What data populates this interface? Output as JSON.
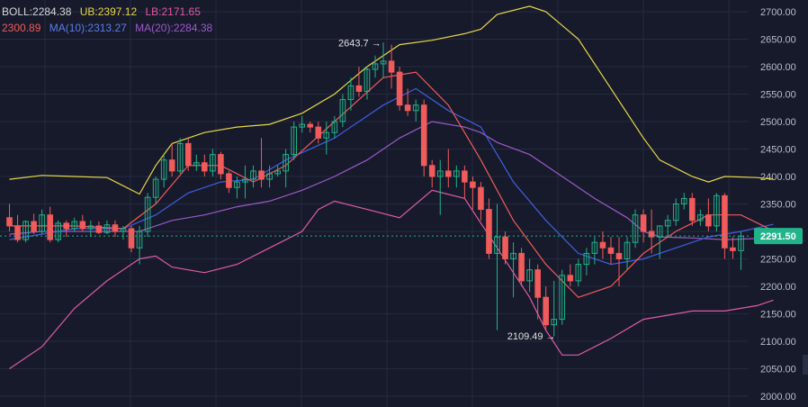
{
  "legend": {
    "boll": {
      "label": "BOLL:2284.38",
      "color": "#d9d9d9"
    },
    "ub": {
      "label": "UB:2397.12",
      "color": "#e6d84a"
    },
    "lb": {
      "label": "LB:2171.65",
      "color": "#e05aa6"
    },
    "ma5": {
      "label": "2300.89",
      "color": "#f05b5b"
    },
    "ma10": {
      "label": "MA(10):2313.27",
      "color": "#3f5fe0"
    },
    "ma20": {
      "label": "MA(20):2284.38",
      "color": "#9b59c9"
    }
  },
  "current_price": {
    "label": "2291.50",
    "color": "#22b38a"
  },
  "chart_data": {
    "type": "candlestick",
    "y_axis": {
      "ticks": [
        "2700.00",
        "2650.00",
        "2600.00",
        "2550.00",
        "2500.00",
        "2450.00",
        "2400.00",
        "2350.00",
        "2300.00",
        "2250.00",
        "2200.00",
        "2150.00",
        "2100.00",
        "2050.00",
        "2000.00"
      ],
      "ylim": [
        1990,
        2730
      ]
    },
    "annotations": {
      "high": "2643.7",
      "low": "2109.49"
    },
    "colors": {
      "up": "#22b38a",
      "down": "#f05b5b",
      "grid": "#252a3f",
      "axis_text": "#b8bccc"
    },
    "candles": [
      [
        2325,
        2350,
        2300,
        2310
      ],
      [
        2310,
        2330,
        2280,
        2285
      ],
      [
        2285,
        2320,
        2280,
        2318
      ],
      [
        2318,
        2332,
        2295,
        2300
      ],
      [
        2300,
        2340,
        2295,
        2330
      ],
      [
        2330,
        2345,
        2280,
        2285
      ],
      [
        2285,
        2320,
        2280,
        2315
      ],
      [
        2315,
        2320,
        2290,
        2305
      ],
      [
        2305,
        2325,
        2300,
        2318
      ],
      [
        2318,
        2330,
        2300,
        2305
      ],
      [
        2305,
        2320,
        2290,
        2310
      ],
      [
        2310,
        2318,
        2295,
        2298
      ],
      [
        2298,
        2320,
        2295,
        2312
      ],
      [
        2312,
        2320,
        2290,
        2300
      ],
      [
        2300,
        2310,
        2285,
        2305
      ],
      [
        2305,
        2310,
        2262,
        2270
      ],
      [
        2270,
        2310,
        2240,
        2300
      ],
      [
        2300,
        2370,
        2290,
        2362
      ],
      [
        2362,
        2400,
        2350,
        2395
      ],
      [
        2395,
        2440,
        2380,
        2430
      ],
      [
        2430,
        2460,
        2400,
        2410
      ],
      [
        2410,
        2470,
        2405,
        2460
      ],
      [
        2460,
        2470,
        2410,
        2420
      ],
      [
        2420,
        2440,
        2410,
        2425
      ],
      [
        2425,
        2440,
        2400,
        2410
      ],
      [
        2410,
        2450,
        2400,
        2440
      ],
      [
        2440,
        2445,
        2395,
        2405
      ],
      [
        2405,
        2410,
        2370,
        2380
      ],
      [
        2380,
        2400,
        2360,
        2390
      ],
      [
        2390,
        2420,
        2360,
        2395
      ],
      [
        2395,
        2420,
        2380,
        2410
      ],
      [
        2410,
        2470,
        2380,
        2395
      ],
      [
        2395,
        2420,
        2380,
        2405
      ],
      [
        2405,
        2420,
        2400,
        2410
      ],
      [
        2410,
        2450,
        2380,
        2440
      ],
      [
        2440,
        2500,
        2430,
        2490
      ],
      [
        2490,
        2510,
        2480,
        2495
      ],
      [
        2495,
        2500,
        2480,
        2490
      ],
      [
        2490,
        2500,
        2460,
        2470
      ],
      [
        2470,
        2500,
        2440,
        2480
      ],
      [
        2480,
        2510,
        2470,
        2500
      ],
      [
        2500,
        2550,
        2490,
        2540
      ],
      [
        2540,
        2580,
        2520,
        2565
      ],
      [
        2565,
        2600,
        2545,
        2555
      ],
      [
        2555,
        2600,
        2540,
        2595
      ],
      [
        2595,
        2620,
        2580,
        2605
      ],
      [
        2605,
        2644,
        2580,
        2610
      ],
      [
        2610,
        2640,
        2560,
        2590
      ],
      [
        2590,
        2600,
        2520,
        2530
      ],
      [
        2530,
        2560,
        2510,
        2520
      ],
      [
        2520,
        2540,
        2500,
        2530
      ],
      [
        2530,
        2540,
        2400,
        2420
      ],
      [
        2420,
        2430,
        2380,
        2400
      ],
      [
        2400,
        2430,
        2330,
        2410
      ],
      [
        2410,
        2450,
        2380,
        2400
      ],
      [
        2400,
        2420,
        2380,
        2410
      ],
      [
        2410,
        2420,
        2360,
        2390
      ],
      [
        2390,
        2400,
        2340,
        2380
      ],
      [
        2380,
        2390,
        2320,
        2340
      ],
      [
        2340,
        2360,
        2250,
        2260
      ],
      [
        2260,
        2350,
        2120,
        2290
      ],
      [
        2290,
        2300,
        2240,
        2250
      ],
      [
        2250,
        2280,
        2180,
        2260
      ],
      [
        2260,
        2270,
        2200,
        2210
      ],
      [
        2210,
        2250,
        2190,
        2230
      ],
      [
        2230,
        2240,
        2140,
        2180
      ],
      [
        2180,
        2200,
        2120,
        2130
      ],
      [
        2130,
        2210,
        2109,
        2140
      ],
      [
        2140,
        2230,
        2130,
        2220
      ],
      [
        2220,
        2240,
        2200,
        2210
      ],
      [
        2210,
        2250,
        2200,
        2240
      ],
      [
        2240,
        2270,
        2220,
        2260
      ],
      [
        2260,
        2290,
        2240,
        2280
      ],
      [
        2280,
        2300,
        2250,
        2270
      ],
      [
        2270,
        2290,
        2240,
        2260
      ],
      [
        2260,
        2290,
        2200,
        2250
      ],
      [
        2250,
        2290,
        2230,
        2280
      ],
      [
        2280,
        2340,
        2270,
        2330
      ],
      [
        2330,
        2340,
        2280,
        2300
      ],
      [
        2300,
        2340,
        2260,
        2290
      ],
      [
        2290,
        2310,
        2250,
        2310
      ],
      [
        2310,
        2330,
        2290,
        2320
      ],
      [
        2320,
        2360,
        2310,
        2350
      ],
      [
        2350,
        2370,
        2340,
        2360
      ],
      [
        2360,
        2370,
        2310,
        2320
      ],
      [
        2320,
        2340,
        2310,
        2330
      ],
      [
        2330,
        2360,
        2300,
        2310
      ],
      [
        2310,
        2370,
        2300,
        2365
      ],
      [
        2365,
        2370,
        2250,
        2270
      ],
      [
        2270,
        2290,
        2250,
        2265
      ],
      [
        2265,
        2300,
        2230,
        2291.5
      ]
    ],
    "bollinger_upper": [
      [
        0,
        2395
      ],
      [
        4,
        2402
      ],
      [
        8,
        2400
      ],
      [
        12,
        2398
      ],
      [
        16,
        2368
      ],
      [
        18,
        2420
      ],
      [
        20,
        2460
      ],
      [
        24,
        2480
      ],
      [
        28,
        2490
      ],
      [
        32,
        2495
      ],
      [
        36,
        2515
      ],
      [
        40,
        2550
      ],
      [
        44,
        2600
      ],
      [
        48,
        2640
      ],
      [
        52,
        2648
      ],
      [
        56,
        2660
      ],
      [
        58,
        2668
      ],
      [
        60,
        2695
      ],
      [
        64,
        2710
      ],
      [
        66,
        2700
      ],
      [
        70,
        2650
      ],
      [
        74,
        2560
      ],
      [
        78,
        2470
      ],
      [
        80,
        2430
      ],
      [
        84,
        2400
      ],
      [
        86,
        2390
      ],
      [
        88,
        2400
      ],
      [
        92,
        2398
      ],
      [
        94,
        2395
      ]
    ],
    "bollinger_middle": [
      [
        0,
        2295
      ],
      [
        4,
        2300
      ],
      [
        8,
        2300
      ],
      [
        12,
        2300
      ],
      [
        16,
        2300
      ],
      [
        20,
        2320
      ],
      [
        24,
        2330
      ],
      [
        28,
        2345
      ],
      [
        32,
        2355
      ],
      [
        36,
        2375
      ],
      [
        40,
        2400
      ],
      [
        44,
        2430
      ],
      [
        48,
        2470
      ],
      [
        52,
        2500
      ],
      [
        56,
        2490
      ],
      [
        58,
        2480
      ],
      [
        60,
        2462
      ],
      [
        64,
        2440
      ],
      [
        68,
        2400
      ],
      [
        72,
        2360
      ],
      [
        76,
        2325
      ],
      [
        78,
        2300
      ],
      [
        80,
        2290
      ],
      [
        84,
        2288
      ],
      [
        88,
        2285
      ],
      [
        92,
        2287
      ],
      [
        94,
        2290
      ]
    ],
    "bollinger_lower": [
      [
        0,
        2050
      ],
      [
        4,
        2090
      ],
      [
        8,
        2160
      ],
      [
        12,
        2210
      ],
      [
        16,
        2250
      ],
      [
        18,
        2255
      ],
      [
        20,
        2235
      ],
      [
        24,
        2225
      ],
      [
        28,
        2240
      ],
      [
        32,
        2270
      ],
      [
        36,
        2300
      ],
      [
        38,
        2340
      ],
      [
        40,
        2355
      ],
      [
        44,
        2340
      ],
      [
        48,
        2325
      ],
      [
        52,
        2375
      ],
      [
        56,
        2360
      ],
      [
        60,
        2270
      ],
      [
        64,
        2180
      ],
      [
        66,
        2120
      ],
      [
        68,
        2075
      ],
      [
        70,
        2075
      ],
      [
        74,
        2105
      ],
      [
        78,
        2140
      ],
      [
        80,
        2145
      ],
      [
        84,
        2155
      ],
      [
        88,
        2155
      ],
      [
        92,
        2165
      ],
      [
        94,
        2175
      ]
    ],
    "ma10_points": [
      [
        0,
        2285
      ],
      [
        8,
        2305
      ],
      [
        14,
        2305
      ],
      [
        18,
        2330
      ],
      [
        22,
        2370
      ],
      [
        26,
        2390
      ],
      [
        30,
        2395
      ],
      [
        34,
        2430
      ],
      [
        40,
        2470
      ],
      [
        46,
        2530
      ],
      [
        50,
        2560
      ],
      [
        54,
        2520
      ],
      [
        58,
        2490
      ],
      [
        62,
        2390
      ],
      [
        66,
        2320
      ],
      [
        70,
        2260
      ],
      [
        74,
        2240
      ],
      [
        78,
        2250
      ],
      [
        82,
        2270
      ],
      [
        86,
        2290
      ],
      [
        90,
        2300
      ],
      [
        94,
        2313
      ]
    ],
    "ma5_points": [
      [
        0,
        2310
      ],
      [
        8,
        2310
      ],
      [
        14,
        2305
      ],
      [
        18,
        2350
      ],
      [
        22,
        2420
      ],
      [
        26,
        2420
      ],
      [
        30,
        2390
      ],
      [
        34,
        2420
      ],
      [
        40,
        2500
      ],
      [
        46,
        2580
      ],
      [
        50,
        2590
      ],
      [
        54,
        2530
      ],
      [
        58,
        2430
      ],
      [
        62,
        2320
      ],
      [
        66,
        2240
      ],
      [
        70,
        2180
      ],
      [
        74,
        2200
      ],
      [
        78,
        2260
      ],
      [
        82,
        2300
      ],
      [
        86,
        2330
      ],
      [
        90,
        2330
      ],
      [
        94,
        2301
      ]
    ]
  }
}
